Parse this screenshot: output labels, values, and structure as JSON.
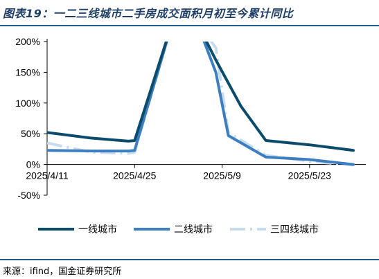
{
  "title": "图表19：一二三线城市二手房成交面积月初至今累计同比",
  "source": "来源：ifind，国金证券研究所",
  "colors": {
    "tier1": "#0b4b6b",
    "tier2": "#3c7ec0",
    "tier34": "#c8dcf0",
    "rule": "#1f5e8c"
  },
  "chart_data": {
    "type": "line",
    "title": "图表19：一二三线城市二手房成交面积月初至今累计同比",
    "ylim": [
      -0.5,
      2.0
    ],
    "yticks": [
      -0.5,
      0,
      0.5,
      1.0,
      1.5,
      2.0
    ],
    "ytick_labels": [
      "-50%",
      "0%",
      "50%",
      "100%",
      "150%",
      "200%"
    ],
    "xlim": [
      "2025-04-11",
      "2025-06-01"
    ],
    "xticks": [
      "2025-04-11",
      "2025-04-25",
      "2025-05-09",
      "2025-05-23"
    ],
    "xtick_labels": [
      "2025/4/11",
      "2025/4/25",
      "2025/5/9",
      "2025/5/23"
    ],
    "grid": false,
    "legend_position": "bottom",
    "series": [
      {
        "name": "一线城市",
        "style": "solid",
        "x": [
          "2025-04-11",
          "2025-04-18",
          "2025-04-24",
          "2025-04-25",
          "2025-05-01",
          "2025-05-05",
          "2025-05-08",
          "2025-05-12",
          "2025-05-16",
          "2025-05-23",
          "2025-05-30"
        ],
        "y": [
          0.52,
          0.43,
          0.38,
          0.39,
          2.3,
          2.3,
          1.7,
          0.95,
          0.39,
          0.32,
          0.23
        ]
      },
      {
        "name": "二线城市",
        "style": "solid",
        "x": [
          "2025-04-11",
          "2025-04-18",
          "2025-04-24",
          "2025-04-25",
          "2025-05-01",
          "2025-05-05",
          "2025-05-08",
          "2025-05-10",
          "2025-05-16",
          "2025-05-23",
          "2025-05-30"
        ],
        "y": [
          0.23,
          0.22,
          0.22,
          0.23,
          2.3,
          2.3,
          1.5,
          0.47,
          0.12,
          0.08,
          0.0
        ]
      },
      {
        "name": "三四线城市",
        "style": "dashdot",
        "x": [
          "2025-04-11",
          "2025-04-18",
          "2025-04-24",
          "2025-04-25",
          "2025-05-01",
          "2025-05-05",
          "2025-05-08",
          "2025-05-10",
          "2025-05-16",
          "2025-05-23",
          "2025-05-30"
        ],
        "y": [
          0.35,
          0.2,
          0.18,
          0.2,
          2.3,
          2.3,
          1.9,
          0.52,
          0.15,
          0.05,
          -0.01
        ]
      }
    ]
  }
}
